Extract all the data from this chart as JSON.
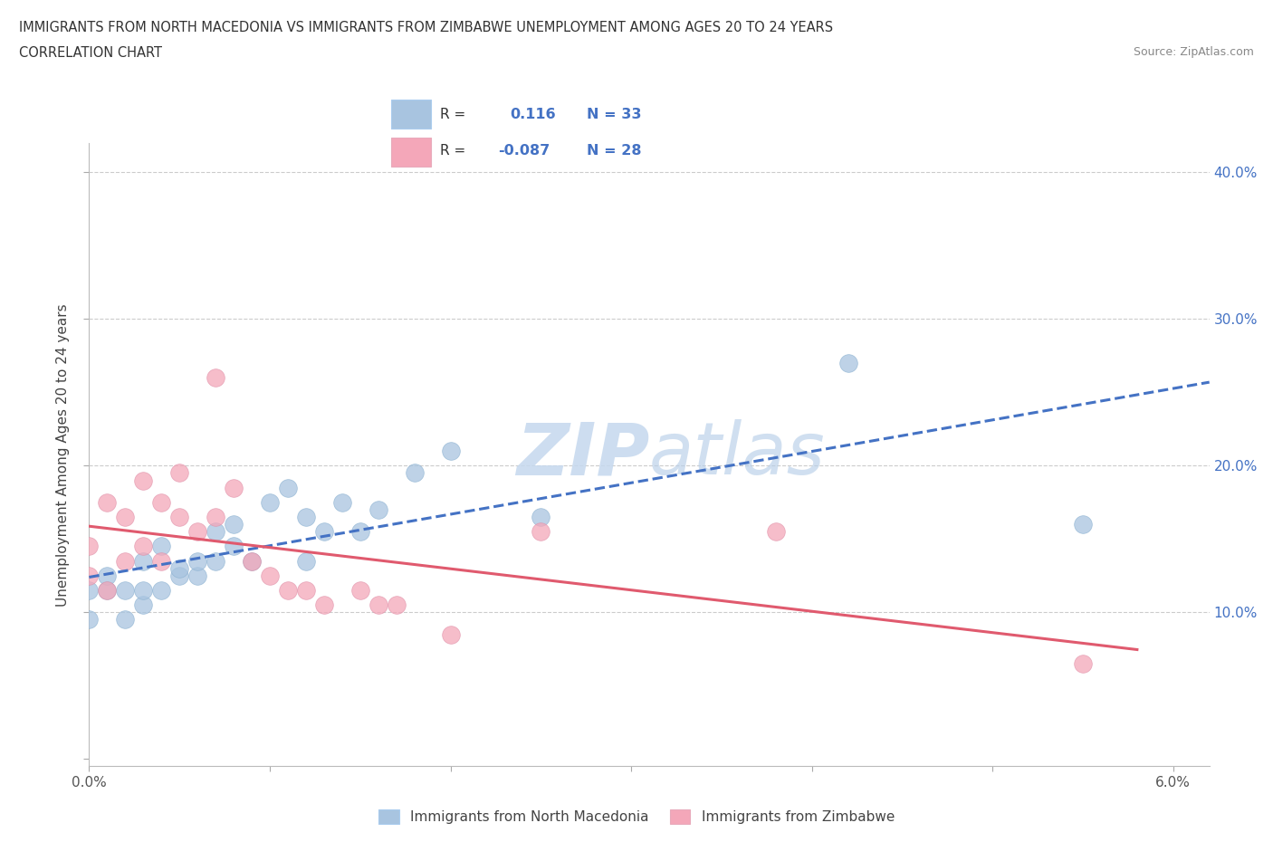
{
  "title_line1": "IMMIGRANTS FROM NORTH MACEDONIA VS IMMIGRANTS FROM ZIMBABWE UNEMPLOYMENT AMONG AGES 20 TO 24 YEARS",
  "title_line2": "CORRELATION CHART",
  "source_text": "Source: ZipAtlas.com",
  "ylabel": "Unemployment Among Ages 20 to 24 years",
  "xlim": [
    0.0,
    0.062
  ],
  "ylim": [
    -0.005,
    0.42
  ],
  "color_blue": "#a8c4e0",
  "color_pink": "#f4a7b9",
  "line_color_blue": "#4472c4",
  "line_color_pink": "#e05a6e",
  "watermark_zip": "ZIP",
  "watermark_atlas": "atlas",
  "nm_x": [
    0.0,
    0.0,
    0.001,
    0.001,
    0.002,
    0.002,
    0.003,
    0.003,
    0.003,
    0.004,
    0.004,
    0.005,
    0.005,
    0.006,
    0.006,
    0.007,
    0.007,
    0.008,
    0.008,
    0.009,
    0.01,
    0.011,
    0.012,
    0.012,
    0.013,
    0.014,
    0.015,
    0.016,
    0.018,
    0.02,
    0.025,
    0.042,
    0.055
  ],
  "nm_y": [
    0.095,
    0.115,
    0.115,
    0.125,
    0.095,
    0.115,
    0.105,
    0.115,
    0.135,
    0.115,
    0.145,
    0.125,
    0.13,
    0.125,
    0.135,
    0.135,
    0.155,
    0.145,
    0.16,
    0.135,
    0.175,
    0.185,
    0.165,
    0.135,
    0.155,
    0.175,
    0.155,
    0.17,
    0.195,
    0.21,
    0.165,
    0.27,
    0.16
  ],
  "zim_x": [
    0.0,
    0.0,
    0.001,
    0.001,
    0.002,
    0.002,
    0.003,
    0.003,
    0.004,
    0.004,
    0.005,
    0.005,
    0.006,
    0.007,
    0.007,
    0.008,
    0.009,
    0.01,
    0.011,
    0.012,
    0.013,
    0.015,
    0.016,
    0.017,
    0.02,
    0.025,
    0.038,
    0.055
  ],
  "zim_y": [
    0.125,
    0.145,
    0.115,
    0.175,
    0.135,
    0.165,
    0.19,
    0.145,
    0.175,
    0.135,
    0.165,
    0.195,
    0.155,
    0.26,
    0.165,
    0.185,
    0.135,
    0.125,
    0.115,
    0.115,
    0.105,
    0.115,
    0.105,
    0.105,
    0.085,
    0.155,
    0.155,
    0.065
  ]
}
